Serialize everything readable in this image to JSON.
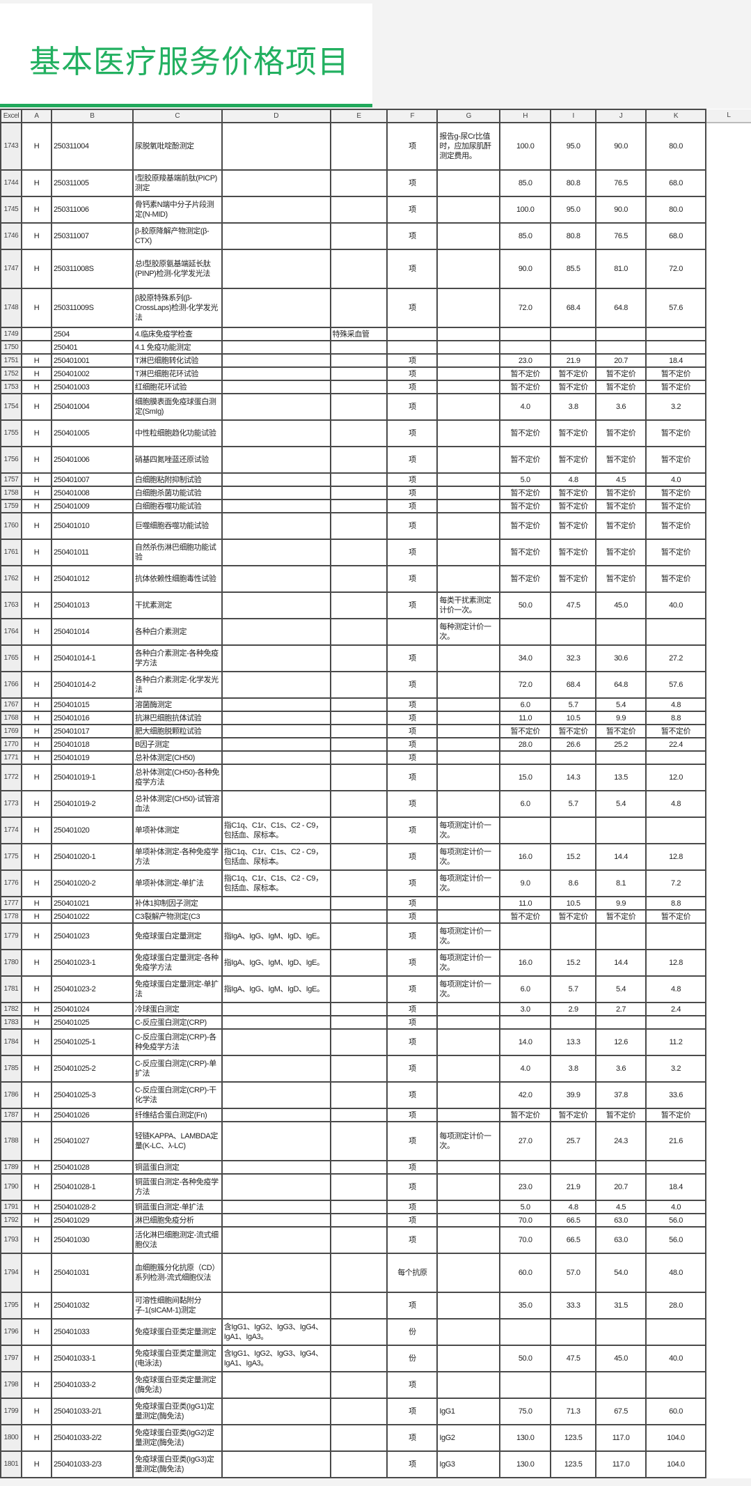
{
  "title": "基本医疗服务价格项目",
  "colors": {
    "title": "#22b060",
    "accent_bar": "#21a95c"
  },
  "headers": [
    "Excel",
    "A",
    "B",
    "C",
    "D",
    "E",
    "F",
    "G",
    "H",
    "I",
    "J",
    "K",
    "L"
  ],
  "rows": [
    {
      "n": "1743",
      "a": "H",
      "b": "250311004",
      "c": "尿脱氧吡啶酚测定",
      "d": "",
      "e": "",
      "f": "项",
      "g": "报告g-尿Cr比值时，应加尿肌酐测定费用。",
      "h": "100.0",
      "i": "95.0",
      "j": "90.0",
      "k": "80.0"
    },
    {
      "n": "1744",
      "a": "H",
      "b": "250311005",
      "c": "I型胶原羧基端前肽(PICP)测定",
      "d": "",
      "e": "",
      "f": "项",
      "g": "",
      "h": "85.0",
      "i": "80.8",
      "j": "76.5",
      "k": "68.0"
    },
    {
      "n": "1745",
      "a": "H",
      "b": "250311006",
      "c": "骨钙素N端中分子片段测定(N-MID)",
      "d": "",
      "e": "",
      "f": "项",
      "g": "",
      "h": "100.0",
      "i": "95.0",
      "j": "90.0",
      "k": "80.0"
    },
    {
      "n": "1746",
      "a": "H",
      "b": "250311007",
      "c": "β-胶原降解产物测定(β-CTX)",
      "d": "",
      "e": "",
      "f": "项",
      "g": "",
      "h": "85.0",
      "i": "80.8",
      "j": "76.5",
      "k": "68.0"
    },
    {
      "n": "1747",
      "a": "H",
      "b": "250311008S",
      "c": "总I型胶原氨基端延长肽(PINP)检测-化学发光法",
      "d": "",
      "e": "",
      "f": "项",
      "g": "",
      "h": "90.0",
      "i": "85.5",
      "j": "81.0",
      "k": "72.0"
    },
    {
      "n": "1748",
      "a": "H",
      "b": "250311009S",
      "c": "β胶原特殊系列(β-CrossLaps)检测-化学发光法",
      "d": "",
      "e": "",
      "f": "项",
      "g": "",
      "h": "72.0",
      "i": "68.4",
      "j": "64.8",
      "k": "57.6"
    },
    {
      "n": "1749",
      "a": "",
      "b": "2504",
      "c": "4.临床免疫学检查",
      "d": "",
      "e": "特殊采血管",
      "f": "",
      "g": "",
      "h": "",
      "i": "",
      "j": "",
      "k": ""
    },
    {
      "n": "1750",
      "a": "",
      "b": "250401",
      "c": "4.1 免疫功能测定",
      "d": "",
      "e": "",
      "f": "",
      "g": "",
      "h": "",
      "i": "",
      "j": "",
      "k": ""
    },
    {
      "n": "1751",
      "a": "H",
      "b": "250401001",
      "c": "T淋巴细胞转化试验",
      "d": "",
      "e": "",
      "f": "项",
      "g": "",
      "h": "23.0",
      "i": "21.9",
      "j": "20.7",
      "k": "18.4"
    },
    {
      "n": "1752",
      "a": "H",
      "b": "250401002",
      "c": "T淋巴细胞花环试验",
      "d": "",
      "e": "",
      "f": "项",
      "g": "",
      "h": "暂不定价",
      "i": "暂不定价",
      "j": "暂不定价",
      "k": "暂不定价"
    },
    {
      "n": "1753",
      "a": "H",
      "b": "250401003",
      "c": "红细胞花环试验",
      "d": "",
      "e": "",
      "f": "项",
      "g": "",
      "h": "暂不定价",
      "i": "暂不定价",
      "j": "暂不定价",
      "k": "暂不定价"
    },
    {
      "n": "1754",
      "a": "H",
      "b": "250401004",
      "c": "细胞膜表面免疫球蛋白测定(SmIg)",
      "d": "",
      "e": "",
      "f": "项",
      "g": "",
      "h": "4.0",
      "i": "3.8",
      "j": "3.6",
      "k": "3.2"
    },
    {
      "n": "1755",
      "a": "H",
      "b": "250401005",
      "c": "中性粒细胞趋化功能试验",
      "d": "",
      "e": "",
      "f": "项",
      "g": "",
      "h": "暂不定价",
      "i": "暂不定价",
      "j": "暂不定价",
      "k": "暂不定价"
    },
    {
      "n": "1756",
      "a": "H",
      "b": "250401006",
      "c": "硝基四氮唑蓝还原试验",
      "d": "",
      "e": "",
      "f": "项",
      "g": "",
      "h": "暂不定价",
      "i": "暂不定价",
      "j": "暂不定价",
      "k": "暂不定价"
    },
    {
      "n": "1757",
      "a": "H",
      "b": "250401007",
      "c": "白细胞粘附抑制试验",
      "d": "",
      "e": "",
      "f": "项",
      "g": "",
      "h": "5.0",
      "i": "4.8",
      "j": "4.5",
      "k": "4.0"
    },
    {
      "n": "1758",
      "a": "H",
      "b": "250401008",
      "c": "白细胞杀菌功能试验",
      "d": "",
      "e": "",
      "f": "项",
      "g": "",
      "h": "暂不定价",
      "i": "暂不定价",
      "j": "暂不定价",
      "k": "暂不定价"
    },
    {
      "n": "1759",
      "a": "H",
      "b": "250401009",
      "c": "白细胞吞噬功能试验",
      "d": "",
      "e": "",
      "f": "项",
      "g": "",
      "h": "暂不定价",
      "i": "暂不定价",
      "j": "暂不定价",
      "k": "暂不定价"
    },
    {
      "n": "1760",
      "a": "H",
      "b": "250401010",
      "c": "巨噬细胞吞噬功能试验",
      "d": "",
      "e": "",
      "f": "项",
      "g": "",
      "h": "暂不定价",
      "i": "暂不定价",
      "j": "暂不定价",
      "k": "暂不定价"
    },
    {
      "n": "1761",
      "a": "H",
      "b": "250401011",
      "c": "自然杀伤淋巴细胞功能试验",
      "d": "",
      "e": "",
      "f": "项",
      "g": "",
      "h": "暂不定价",
      "i": "暂不定价",
      "j": "暂不定价",
      "k": "暂不定价"
    },
    {
      "n": "1762",
      "a": "H",
      "b": "250401012",
      "c": "抗体依赖性细胞毒性试验",
      "d": "",
      "e": "",
      "f": "项",
      "g": "",
      "h": "暂不定价",
      "i": "暂不定价",
      "j": "暂不定价",
      "k": "暂不定价"
    },
    {
      "n": "1763",
      "a": "H",
      "b": "250401013",
      "c": "干扰素测定",
      "d": "",
      "e": "",
      "f": "项",
      "g": "每类干扰素测定计价一次。",
      "h": "50.0",
      "i": "47.5",
      "j": "45.0",
      "k": "40.0"
    },
    {
      "n": "1764",
      "a": "H",
      "b": "250401014",
      "c": "各种白介素测定",
      "d": "",
      "e": "",
      "f": "",
      "g": "每种测定计价一次。",
      "h": "",
      "i": "",
      "j": "",
      "k": ""
    },
    {
      "n": "1765",
      "a": "H",
      "b": "250401014-1",
      "c": "各种白介素测定-各种免疫学方法",
      "d": "",
      "e": "",
      "f": "项",
      "g": "",
      "h": "34.0",
      "i": "32.3",
      "j": "30.6",
      "k": "27.2"
    },
    {
      "n": "1766",
      "a": "H",
      "b": "250401014-2",
      "c": "各种白介素测定-化学发光法",
      "d": "",
      "e": "",
      "f": "项",
      "g": "",
      "h": "72.0",
      "i": "68.4",
      "j": "64.8",
      "k": "57.6"
    },
    {
      "n": "1767",
      "a": "H",
      "b": "250401015",
      "c": "溶菌酶测定",
      "d": "",
      "e": "",
      "f": "项",
      "g": "",
      "h": "6.0",
      "i": "5.7",
      "j": "5.4",
      "k": "4.8"
    },
    {
      "n": "1768",
      "a": "H",
      "b": "250401016",
      "c": "抗淋巴细胞抗体试验",
      "d": "",
      "e": "",
      "f": "项",
      "g": "",
      "h": "11.0",
      "i": "10.5",
      "j": "9.9",
      "k": "8.8"
    },
    {
      "n": "1769",
      "a": "H",
      "b": "250401017",
      "c": "肥大细胞脱颗粒试验",
      "d": "",
      "e": "",
      "f": "项",
      "g": "",
      "h": "暂不定价",
      "i": "暂不定价",
      "j": "暂不定价",
      "k": "暂不定价"
    },
    {
      "n": "1770",
      "a": "H",
      "b": "250401018",
      "c": "B因子测定",
      "d": "",
      "e": "",
      "f": "项",
      "g": "",
      "h": "28.0",
      "i": "26.6",
      "j": "25.2",
      "k": "22.4"
    },
    {
      "n": "1771",
      "a": "H",
      "b": "250401019",
      "c": "总补体测定(CH50)",
      "d": "",
      "e": "",
      "f": "项",
      "g": "",
      "h": "",
      "i": "",
      "j": "",
      "k": ""
    },
    {
      "n": "1772",
      "a": "H",
      "b": "250401019-1",
      "c": "总补体测定(CH50)-各种免疫学方法",
      "d": "",
      "e": "",
      "f": "项",
      "g": "",
      "h": "15.0",
      "i": "14.3",
      "j": "13.5",
      "k": "12.0"
    },
    {
      "n": "1773",
      "a": "H",
      "b": "250401019-2",
      "c": "总补体测定(CH50)-试管溶血法",
      "d": "",
      "e": "",
      "f": "项",
      "g": "",
      "h": "6.0",
      "i": "5.7",
      "j": "5.4",
      "k": "4.8"
    },
    {
      "n": "1774",
      "a": "H",
      "b": "250401020",
      "c": "单项补体测定",
      "d": "指C1q、C1r、C1s、C2 - C9，包括血、尿标本。",
      "e": "",
      "f": "项",
      "g": "每项测定计价一次。",
      "h": "",
      "i": "",
      "j": "",
      "k": ""
    },
    {
      "n": "1775",
      "a": "H",
      "b": "250401020-1",
      "c": "单项补体测定-各种免疫学方法",
      "d": "指C1q、C1r、C1s、C2 - C9，包括血、尿标本。",
      "e": "",
      "f": "项",
      "g": "每项测定计价一次。",
      "h": "16.0",
      "i": "15.2",
      "j": "14.4",
      "k": "12.8"
    },
    {
      "n": "1776",
      "a": "H",
      "b": "250401020-2",
      "c": "单项补体测定-单扩法",
      "d": "指C1q、C1r、C1s、C2 - C9，包括血、尿标本。",
      "e": "",
      "f": "项",
      "g": "每项测定计价一次。",
      "h": "9.0",
      "i": "8.6",
      "j": "8.1",
      "k": "7.2"
    },
    {
      "n": "1777",
      "a": "H",
      "b": "250401021",
      "c": "补体1抑制因子测定",
      "d": "",
      "e": "",
      "f": "项",
      "g": "",
      "h": "11.0",
      "i": "10.5",
      "j": "9.9",
      "k": "8.8"
    },
    {
      "n": "1778",
      "a": "H",
      "b": "250401022",
      "c": "C3裂解产物测定(C3",
      "d": "",
      "e": "",
      "f": "项",
      "g": "",
      "h": "暂不定价",
      "i": "暂不定价",
      "j": "暂不定价",
      "k": "暂不定价"
    },
    {
      "n": "1779",
      "a": "H",
      "b": "250401023",
      "c": "免疫球蛋白定量测定",
      "d": "指IgA、IgG、IgM、IgD、IgE。",
      "e": "",
      "f": "项",
      "g": "每项测定计价一次。",
      "h": "",
      "i": "",
      "j": "",
      "k": ""
    },
    {
      "n": "1780",
      "a": "H",
      "b": "250401023-1",
      "c": "免疫球蛋白定量测定-各种免疫学方法",
      "d": "指IgA、IgG、IgM、IgD、IgE。",
      "e": "",
      "f": "项",
      "g": "每项测定计价一次。",
      "h": "16.0",
      "i": "15.2",
      "j": "14.4",
      "k": "12.8"
    },
    {
      "n": "1781",
      "a": "H",
      "b": "250401023-2",
      "c": "免疫球蛋白定量测定-单扩法",
      "d": "指IgA、IgG、IgM、IgD、IgE。",
      "e": "",
      "f": "项",
      "g": "每项测定计价一次。",
      "h": "6.0",
      "i": "5.7",
      "j": "5.4",
      "k": "4.8"
    },
    {
      "n": "1782",
      "a": "H",
      "b": "250401024",
      "c": "冷球蛋白测定",
      "d": "",
      "e": "",
      "f": "项",
      "g": "",
      "h": "3.0",
      "i": "2.9",
      "j": "2.7",
      "k": "2.4"
    },
    {
      "n": "1783",
      "a": "H",
      "b": "250401025",
      "c": "C-反应蛋白测定(CRP)",
      "d": "",
      "e": "",
      "f": "项",
      "g": "",
      "h": "",
      "i": "",
      "j": "",
      "k": ""
    },
    {
      "n": "1784",
      "a": "H",
      "b": "250401025-1",
      "c": "C-反应蛋白测定(CRP)-各种免疫学方法",
      "d": "",
      "e": "",
      "f": "项",
      "g": "",
      "h": "14.0",
      "i": "13.3",
      "j": "12.6",
      "k": "11.2"
    },
    {
      "n": "1785",
      "a": "H",
      "b": "250401025-2",
      "c": "C-反应蛋白测定(CRP)-单扩法",
      "d": "",
      "e": "",
      "f": "项",
      "g": "",
      "h": "4.0",
      "i": "3.8",
      "j": "3.6",
      "k": "3.2"
    },
    {
      "n": "1786",
      "a": "H",
      "b": "250401025-3",
      "c": "C-反应蛋白测定(CRP)-干化学法",
      "d": "",
      "e": "",
      "f": "项",
      "g": "",
      "h": "42.0",
      "i": "39.9",
      "j": "37.8",
      "k": "33.6"
    },
    {
      "n": "1787",
      "a": "H",
      "b": "250401026",
      "c": "纤维结合蛋白测定(Fn)",
      "d": "",
      "e": "",
      "f": "项",
      "g": "",
      "h": "暂不定价",
      "i": "暂不定价",
      "j": "暂不定价",
      "k": "暂不定价"
    },
    {
      "n": "1788",
      "a": "H",
      "b": "250401027",
      "c": "轻链KAPPA、LAMBDA定量(K-LC、λ-LC)",
      "d": "",
      "e": "",
      "f": "项",
      "g": "每项测定计价一次。",
      "h": "27.0",
      "i": "25.7",
      "j": "24.3",
      "k": "21.6"
    },
    {
      "n": "1789",
      "a": "H",
      "b": "250401028",
      "c": "铜蓝蛋白测定",
      "d": "",
      "e": "",
      "f": "项",
      "g": "",
      "h": "",
      "i": "",
      "j": "",
      "k": ""
    },
    {
      "n": "1790",
      "a": "H",
      "b": "250401028-1",
      "c": "铜蓝蛋白测定-各种免疫学方法",
      "d": "",
      "e": "",
      "f": "项",
      "g": "",
      "h": "23.0",
      "i": "21.9",
      "j": "20.7",
      "k": "18.4"
    },
    {
      "n": "1791",
      "a": "H",
      "b": "250401028-2",
      "c": "铜蓝蛋白测定-单扩法",
      "d": "",
      "e": "",
      "f": "项",
      "g": "",
      "h": "5.0",
      "i": "4.8",
      "j": "4.5",
      "k": "4.0"
    },
    {
      "n": "1792",
      "a": "H",
      "b": "250401029",
      "c": "淋巴细胞免疫分析",
      "d": "",
      "e": "",
      "f": "项",
      "g": "",
      "h": "70.0",
      "i": "66.5",
      "j": "63.0",
      "k": "56.0"
    },
    {
      "n": "1793",
      "a": "H",
      "b": "250401030",
      "c": "活化淋巴细胞测定-流式细胞仪法",
      "d": "",
      "e": "",
      "f": "项",
      "g": "",
      "h": "70.0",
      "i": "66.5",
      "j": "63.0",
      "k": "56.0"
    },
    {
      "n": "1794",
      "a": "H",
      "b": "250401031",
      "c": "血细胞簇分化抗原（CD）系列检测-流式细胞仪法",
      "d": "",
      "e": "",
      "f": "每个抗原",
      "g": "",
      "h": "60.0",
      "i": "57.0",
      "j": "54.0",
      "k": "48.0"
    },
    {
      "n": "1795",
      "a": "H",
      "b": "250401032",
      "c": "可溶性细胞间黏附分子-1(sICAM-1)测定",
      "d": "",
      "e": "",
      "f": "项",
      "g": "",
      "h": "35.0",
      "i": "33.3",
      "j": "31.5",
      "k": "28.0"
    },
    {
      "n": "1796",
      "a": "H",
      "b": "250401033",
      "c": "免疫球蛋白亚类定量测定",
      "d": "含IgG1、IgG2、IgG3、IgG4、IgA1、IgA3。",
      "e": "",
      "f": "份",
      "g": "",
      "h": "",
      "i": "",
      "j": "",
      "k": ""
    },
    {
      "n": "1797",
      "a": "H",
      "b": "250401033-1",
      "c": "免疫球蛋白亚类定量测定(电泳法)",
      "d": "含IgG1、IgG2、IgG3、IgG4、IgA1、IgA3。",
      "e": "",
      "f": "份",
      "g": "",
      "h": "50.0",
      "i": "47.5",
      "j": "45.0",
      "k": "40.0"
    },
    {
      "n": "1798",
      "a": "H",
      "b": "250401033-2",
      "c": "免疫球蛋白亚类定量测定(酶免法)",
      "d": "",
      "e": "",
      "f": "项",
      "g": "",
      "h": "",
      "i": "",
      "j": "",
      "k": ""
    },
    {
      "n": "1799",
      "a": "H",
      "b": "250401033-2/1",
      "c": "免疫球蛋白亚类(IgG1)定量测定(酶免法)",
      "d": "",
      "e": "",
      "f": "项",
      "g": "IgG1",
      "h": "75.0",
      "i": "71.3",
      "j": "67.5",
      "k": "60.0"
    },
    {
      "n": "1800",
      "a": "H",
      "b": "250401033-2/2",
      "c": "免疫球蛋白亚类(IgG2)定量测定(酶免法)",
      "d": "",
      "e": "",
      "f": "项",
      "g": "IgG2",
      "h": "130.0",
      "i": "123.5",
      "j": "117.0",
      "k": "104.0"
    },
    {
      "n": "1801",
      "a": "H",
      "b": "250401033-2/3",
      "c": "免疫球蛋白亚类(IgG3)定量测定(酶免法)",
      "d": "",
      "e": "",
      "f": "项",
      "g": "IgG3",
      "h": "130.0",
      "i": "123.5",
      "j": "117.0",
      "k": "104.0"
    }
  ]
}
